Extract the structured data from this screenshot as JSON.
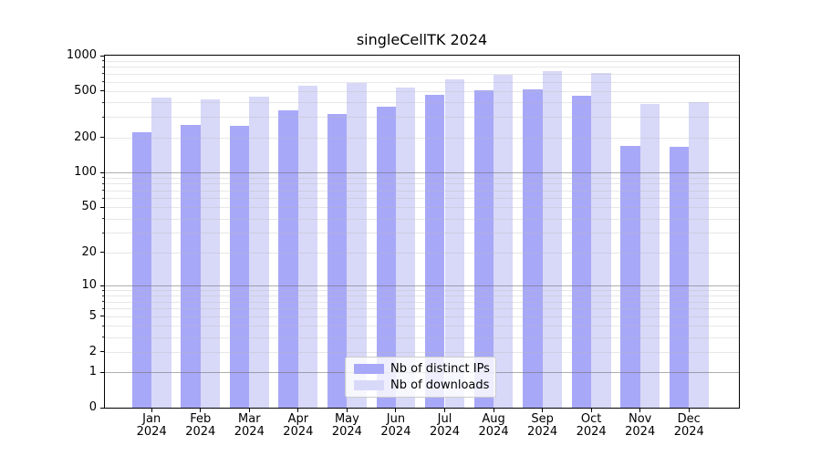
{
  "chart_data": {
    "type": "bar",
    "title": "singleCellTK 2024",
    "categories": [
      "Jan",
      "Feb",
      "Mar",
      "Apr",
      "May",
      "Jun",
      "Jul",
      "Aug",
      "Sep",
      "Oct",
      "Nov",
      "Dec"
    ],
    "year_label": "2024",
    "series": [
      {
        "name": "Nb of distinct IPs",
        "color": "#a8a8f8",
        "values": [
          220,
          255,
          250,
          340,
          320,
          365,
          465,
          505,
          515,
          455,
          170,
          165
        ]
      },
      {
        "name": "Nb of downloads",
        "color": "#d8d8f8",
        "values": [
          435,
          420,
          445,
          555,
          580,
          530,
          630,
          685,
          740,
          710,
          385,
          400
        ]
      }
    ],
    "y_axis": {
      "scale": "log10(value+1)",
      "ylim": [
        0,
        1000
      ],
      "tick_labels": [
        0,
        1,
        2,
        5,
        10,
        20,
        50,
        100,
        200,
        500,
        1000
      ]
    },
    "x_axis": {
      "tick_label_line2": "2024"
    },
    "grid": "horizontal, major and minor, drawn over bars",
    "legend_position": "lower center"
  },
  "colors": {
    "bar_distinct_ips": "#a8a8f8",
    "bar_downloads": "#d8d8f8",
    "major_grid": "#6e6e6e",
    "minor_grid": "#b9b9b9",
    "spine": "#000000",
    "text": "#000000",
    "background": "#ffffff"
  }
}
